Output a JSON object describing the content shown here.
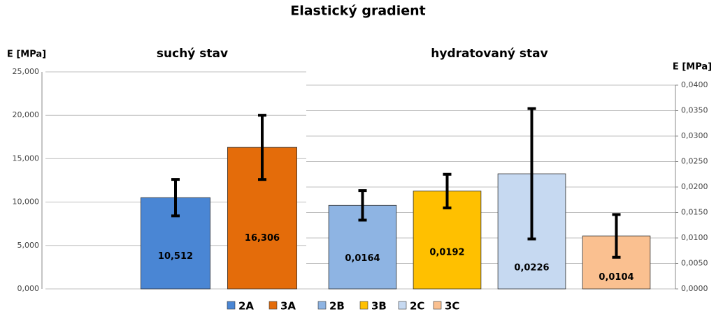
{
  "title": "Elastický gradient",
  "chart_data": [
    {
      "type": "bar",
      "subtitle": "suchý stav",
      "ylabel": "E [MPa]",
      "axis_side": "left",
      "categories": [
        "2A",
        "3A"
      ],
      "values": [
        10.512,
        16.306
      ],
      "value_labels": [
        "10,512",
        "16,306"
      ],
      "errors": [
        2.1,
        3.7
      ],
      "colors": [
        "#4a86d4",
        "#e46c0a"
      ],
      "ylim": [
        0,
        25
      ],
      "yticks": [
        {
          "value": 0,
          "label": "0,000"
        },
        {
          "value": 5,
          "label": "5,000"
        },
        {
          "value": 10,
          "label": "10,000"
        },
        {
          "value": 15,
          "label": "15,000"
        },
        {
          "value": 20,
          "label": "20,000"
        },
        {
          "value": 25,
          "label": "25,000"
        }
      ],
      "grid": true
    },
    {
      "type": "bar",
      "subtitle": "hydratovaný stav",
      "ylabel": "E [MPa]",
      "axis_side": "right",
      "categories": [
        "2B",
        "3B",
        "2C",
        "3C"
      ],
      "values": [
        0.0164,
        0.0192,
        0.0226,
        0.0104
      ],
      "value_labels": [
        "0,0164",
        "0,0192",
        "0,0226",
        "0,0104"
      ],
      "errors": [
        0.0029,
        0.0033,
        0.0128,
        0.0042
      ],
      "colors": [
        "#8eb4e3",
        "#ffc000",
        "#c6d9f1",
        "#fac090"
      ],
      "ylim": [
        0,
        0.04
      ],
      "yticks": [
        {
          "value": 0,
          "label": "0,0000"
        },
        {
          "value": 0.005,
          "label": "0,0050"
        },
        {
          "value": 0.01,
          "label": "0,0100"
        },
        {
          "value": 0.015,
          "label": "0,0150"
        },
        {
          "value": 0.02,
          "label": "0,0200"
        },
        {
          "value": 0.025,
          "label": "0,0250"
        },
        {
          "value": 0.03,
          "label": "0,0300"
        },
        {
          "value": 0.035,
          "label": "0,0350"
        },
        {
          "value": 0.04,
          "label": "0,0400"
        }
      ],
      "grid": true
    }
  ]
}
